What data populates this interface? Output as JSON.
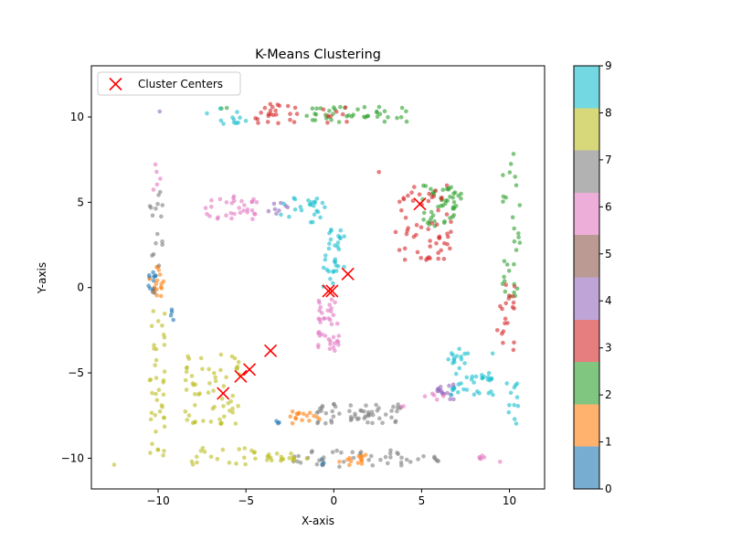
{
  "chart_data": {
    "type": "scatter",
    "title": "K-Means Clustering",
    "xlabel": "X-axis",
    "ylabel": "Y-axis",
    "xlim": [
      -13.8,
      12.0
    ],
    "ylim": [
      -11.8,
      13.0
    ],
    "xticks": [
      -10,
      -5,
      0,
      5,
      10
    ],
    "yticks": [
      -10,
      -5,
      0,
      5,
      10
    ],
    "legend": {
      "location": "upper-left",
      "label": "Cluster Centers"
    },
    "colorbar": {
      "ticks": [
        0,
        1,
        2,
        3,
        4,
        5,
        6,
        7,
        8,
        9
      ],
      "range": [
        0,
        9
      ],
      "colors": [
        "#1f77b4",
        "#ff7f0e",
        "#2ca02c",
        "#d62728",
        "#9467bd",
        "#8c564b",
        "#e377c2",
        "#7f7f7f",
        "#bcbd22",
        "#17becf"
      ]
    },
    "point_alpha": 0.6,
    "centers": [
      [
        4.9,
        4.9
      ],
      [
        -0.3,
        -0.2
      ],
      [
        0.8,
        0.8
      ],
      [
        -3.6,
        -3.7
      ],
      [
        -4.8,
        -4.8
      ],
      [
        -5.3,
        -5.2
      ],
      [
        -6.3,
        -6.2
      ],
      [
        -0.1,
        -0.2
      ]
    ],
    "clusters": [
      {
        "label": 0,
        "segments": [
          {
            "x": [
              -10.6,
              -10.1
            ],
            "y": [
              -0.6,
              0.9
            ],
            "n": 14
          },
          {
            "x": [
              -9.3,
              -9.1
            ],
            "y": [
              -2.2,
              -0.4
            ],
            "n": 4
          },
          {
            "x": [
              -3.4,
              -3.1
            ],
            "y": [
              -8.0,
              -7.8
            ],
            "n": 3
          },
          {
            "x": [
              -0.9,
              -0.5
            ],
            "y": [
              -10.4,
              -10.0
            ],
            "n": 4
          }
        ]
      },
      {
        "label": 1,
        "segments": [
          {
            "x": [
              -10.5,
              -9.5
            ],
            "y": [
              -0.5,
              1.3
            ],
            "n": 16
          },
          {
            "x": [
              -2.5,
              -0.8
            ],
            "y": [
              -8.2,
              -7.2
            ],
            "n": 16
          },
          {
            "x": [
              0.3,
              2.2
            ],
            "y": [
              -10.4,
              -9.8
            ],
            "n": 14
          }
        ]
      },
      {
        "label": 2,
        "segments": [
          {
            "x": [
              -1.8,
              4.3
            ],
            "y": [
              9.7,
              10.6
            ],
            "n": 42
          },
          {
            "x": [
              5.0,
              7.3
            ],
            "y": [
              3.6,
              6.0
            ],
            "n": 48
          },
          {
            "x": [
              9.6,
              10.6
            ],
            "y": [
              -1.0,
              8.0
            ],
            "n": 30
          },
          {
            "x": [
              -6.5,
              -6.0
            ],
            "y": [
              10.4,
              10.6
            ],
            "n": 2
          }
        ]
      },
      {
        "label": 3,
        "segments": [
          {
            "x": [
              -4.5,
              -2.0
            ],
            "y": [
              9.6,
              10.8
            ],
            "n": 24
          },
          {
            "x": [
              -0.8,
              0.8
            ],
            "y": [
              9.6,
              10.6
            ],
            "n": 8
          },
          {
            "x": [
              3.5,
              6.8
            ],
            "y": [
              1.6,
              6.0
            ],
            "n": 58
          },
          {
            "x": [
              9.3,
              10.3
            ],
            "y": [
              -3.7,
              0.2
            ],
            "n": 20
          },
          {
            "x": [
              2.5,
              2.6
            ],
            "y": [
              6.7,
              6.8
            ],
            "n": 1
          }
        ]
      },
      {
        "label": 4,
        "segments": [
          {
            "x": [
              -4.0,
              -2.6
            ],
            "y": [
              4.2,
              5.0
            ],
            "n": 8
          },
          {
            "x": [
              5.8,
              6.9
            ],
            "y": [
              -6.6,
              -5.6
            ],
            "n": 16
          },
          {
            "x": [
              -10.0,
              -9.9
            ],
            "y": [
              10.3,
              10.5
            ],
            "n": 1
          }
        ]
      },
      {
        "label": 5,
        "segments": []
      },
      {
        "label": 6,
        "segments": [
          {
            "x": [
              -7.3,
              -4.3
            ],
            "y": [
              4.0,
              5.4
            ],
            "n": 32
          },
          {
            "x": [
              -0.9,
              0.4
            ],
            "y": [
              -3.7,
              -0.5
            ],
            "n": 40
          },
          {
            "x": [
              -10.3,
              -9.8
            ],
            "y": [
              5.7,
              7.4
            ],
            "n": 5
          },
          {
            "x": [
              5.0,
              6.3
            ],
            "y": [
              -6.2,
              -6.6
            ],
            "n": 5
          },
          {
            "x": [
              8.0,
              9.5
            ],
            "y": [
              -10.6,
              -9.6
            ],
            "n": 6
          },
          {
            "x": [
              3.8,
              4.0
            ],
            "y": [
              -7.0,
              -6.8
            ],
            "n": 2
          }
        ]
      },
      {
        "label": 7,
        "segments": [
          {
            "x": [
              -10.5,
              -9.7
            ],
            "y": [
              1.2,
              5.8
            ],
            "n": 16
          },
          {
            "x": [
              -1.0,
              3.8
            ],
            "y": [
              -8.0,
              -6.8
            ],
            "n": 56
          },
          {
            "x": [
              -1.5,
              6.5
            ],
            "y": [
              -10.5,
              -9.5
            ],
            "n": 40
          },
          {
            "x": [
              -2.5,
              -1.6
            ],
            "y": [
              -10.3,
              -9.8
            ],
            "n": 5
          }
        ]
      },
      {
        "label": 8,
        "segments": [
          {
            "x": [
              -10.5,
              -9.6
            ],
            "y": [
              -10.3,
              -1.0
            ],
            "n": 40
          },
          {
            "x": [
              -8.5,
              -5.2
            ],
            "y": [
              -8.0,
              -3.8
            ],
            "n": 60
          },
          {
            "x": [
              -8.6,
              -4.4
            ],
            "y": [
              -10.4,
              -9.4
            ],
            "n": 20
          },
          {
            "x": [
              -4.0,
              -1.5
            ],
            "y": [
              -10.2,
              -9.7
            ],
            "n": 18
          },
          {
            "x": [
              -12.6,
              -12.5
            ],
            "y": [
              -10.4,
              -10.3
            ],
            "n": 1
          }
        ]
      },
      {
        "label": 9,
        "segments": [
          {
            "x": [
              -7.5,
              -5.0
            ],
            "y": [
              9.6,
              10.6
            ],
            "n": 12
          },
          {
            "x": [
              -3.2,
              -0.5
            ],
            "y": [
              3.8,
              5.4
            ],
            "n": 24
          },
          {
            "x": [
              -0.6,
              0.6
            ],
            "y": [
              0.0,
              3.7
            ],
            "n": 32
          },
          {
            "x": [
              6.4,
              9.1
            ],
            "y": [
              -6.3,
              -3.5
            ],
            "n": 48
          },
          {
            "x": [
              9.7,
              10.6
            ],
            "y": [
              -8.0,
              -5.6
            ],
            "n": 12
          }
        ]
      }
    ]
  }
}
